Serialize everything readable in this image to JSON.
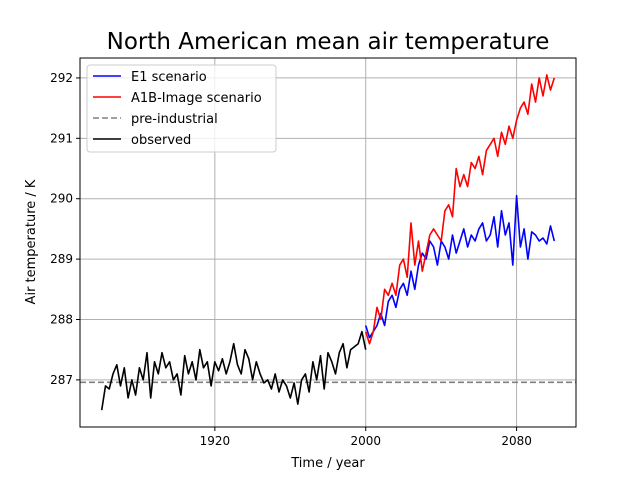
{
  "chart_data": {
    "type": "line",
    "title": "North American mean air temperature",
    "xlabel": "Time / year",
    "ylabel": "Air temperature / K",
    "xlim": [
      1848.5,
      2111.5
    ],
    "ylim": [
      286.22,
      292.33
    ],
    "xticks": [
      1920,
      2000,
      2080
    ],
    "yticks": [
      287,
      288,
      289,
      290,
      291,
      292
    ],
    "grid": true,
    "legend_position": "top-left",
    "series": [
      {
        "name": "E1 scenario",
        "color": "#0000ff",
        "style": "solid",
        "x": [
          2000,
          2002,
          2004,
          2006,
          2008,
          2010,
          2012,
          2014,
          2016,
          2018,
          2020,
          2022,
          2024,
          2026,
          2028,
          2030,
          2032,
          2034,
          2036,
          2038,
          2040,
          2042,
          2044,
          2046,
          2048,
          2050,
          2052,
          2054,
          2056,
          2058,
          2060,
          2062,
          2064,
          2066,
          2068,
          2070,
          2072,
          2074,
          2076,
          2078,
          2080,
          2082,
          2084,
          2086,
          2088,
          2090,
          2092,
          2094,
          2096,
          2098,
          2100
        ],
        "y": [
          287.9,
          287.7,
          287.8,
          287.9,
          288.1,
          287.9,
          288.3,
          288.4,
          288.2,
          288.5,
          288.6,
          288.4,
          288.8,
          288.5,
          288.9,
          289.1,
          289.0,
          289.3,
          289.2,
          288.9,
          289.3,
          289.2,
          289.0,
          289.4,
          289.1,
          289.3,
          289.5,
          289.2,
          289.4,
          289.3,
          289.5,
          289.6,
          289.3,
          289.4,
          289.7,
          289.2,
          289.8,
          289.4,
          289.6,
          288.9,
          290.05,
          289.2,
          289.5,
          289.0,
          289.45,
          289.4,
          289.3,
          289.35,
          289.25,
          289.55,
          289.3
        ]
      },
      {
        "name": "A1B-Image scenario",
        "color": "#ff0000",
        "style": "solid",
        "x": [
          2000,
          2002,
          2004,
          2006,
          2008,
          2010,
          2012,
          2014,
          2016,
          2018,
          2020,
          2022,
          2024,
          2026,
          2028,
          2030,
          2032,
          2034,
          2036,
          2038,
          2040,
          2042,
          2044,
          2046,
          2048,
          2050,
          2052,
          2054,
          2056,
          2058,
          2060,
          2062,
          2064,
          2066,
          2068,
          2070,
          2072,
          2074,
          2076,
          2078,
          2080,
          2082,
          2084,
          2086,
          2088,
          2090,
          2092,
          2094,
          2096,
          2098,
          2100
        ],
        "y": [
          287.8,
          287.6,
          287.8,
          288.2,
          288.0,
          288.5,
          288.4,
          288.6,
          288.4,
          288.9,
          289.0,
          288.7,
          289.6,
          288.9,
          289.3,
          288.8,
          289.1,
          289.4,
          289.5,
          289.4,
          289.3,
          289.8,
          289.9,
          289.7,
          290.5,
          290.2,
          290.4,
          290.2,
          290.6,
          290.5,
          290.7,
          290.4,
          290.8,
          290.9,
          291.0,
          290.7,
          291.1,
          290.9,
          291.2,
          291.0,
          291.3,
          291.5,
          291.6,
          291.4,
          291.9,
          291.6,
          292.0,
          291.7,
          292.05,
          291.8,
          292.0
        ]
      },
      {
        "name": "pre-industrial",
        "color": "#808080",
        "style": "dashed",
        "x": [
          1848.5,
          2111.5
        ],
        "y": [
          286.96,
          286.96
        ]
      },
      {
        "name": "observed",
        "color": "#000000",
        "style": "solid",
        "x": [
          1860,
          1862,
          1864,
          1866,
          1868,
          1870,
          1872,
          1874,
          1876,
          1878,
          1880,
          1882,
          1884,
          1886,
          1888,
          1890,
          1892,
          1894,
          1896,
          1898,
          1900,
          1902,
          1904,
          1906,
          1908,
          1910,
          1912,
          1914,
          1916,
          1918,
          1920,
          1922,
          1924,
          1926,
          1928,
          1930,
          1932,
          1934,
          1936,
          1938,
          1940,
          1942,
          1944,
          1946,
          1948,
          1950,
          1952,
          1954,
          1956,
          1958,
          1960,
          1962,
          1964,
          1966,
          1968,
          1970,
          1972,
          1974,
          1976,
          1978,
          1980,
          1982,
          1984,
          1986,
          1988,
          1990,
          1992,
          1994,
          1996,
          1998,
          2000
        ],
        "y": [
          286.5,
          286.9,
          286.85,
          287.1,
          287.25,
          286.9,
          287.2,
          286.7,
          287.0,
          286.75,
          287.2,
          287.0,
          287.45,
          286.7,
          287.3,
          287.1,
          287.45,
          287.2,
          287.3,
          287.0,
          287.1,
          286.75,
          287.4,
          287.1,
          287.3,
          287.0,
          287.5,
          287.2,
          287.3,
          286.9,
          287.3,
          287.15,
          287.35,
          287.1,
          287.3,
          287.6,
          287.25,
          287.1,
          287.5,
          287.35,
          287.0,
          287.3,
          287.1,
          286.95,
          287.0,
          286.85,
          287.1,
          286.8,
          287.0,
          286.9,
          286.7,
          286.95,
          286.6,
          287.0,
          287.1,
          286.8,
          287.3,
          287.0,
          287.4,
          286.85,
          287.45,
          287.3,
          287.1,
          287.45,
          287.6,
          287.2,
          287.5,
          287.55,
          287.6,
          287.8,
          287.5
        ]
      }
    ]
  }
}
